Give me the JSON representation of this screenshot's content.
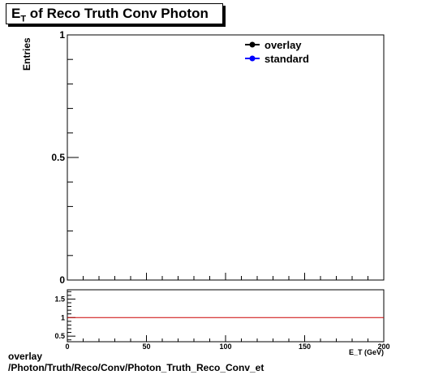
{
  "chart_data": [
    {
      "type": "line",
      "title": "E",
      "title_sub": "T",
      "title_rest": " of Reco Truth Conv Photon",
      "ylabel": "Entries",
      "xlim": [
        0,
        200
      ],
      "ylim": [
        0,
        1
      ],
      "y_ticks": [
        {
          "value": 0,
          "label": "0"
        },
        {
          "value": 0.5,
          "label": "0.5"
        },
        {
          "value": 1,
          "label": "1"
        }
      ],
      "grid": false,
      "legend_position": "top-right",
      "series": [
        {
          "name": "overlay",
          "color": "#000000",
          "values": []
        },
        {
          "name": "standard",
          "color": "#0000ff",
          "values": []
        }
      ]
    },
    {
      "type": "line",
      "xlabel": "E_T (GeV)",
      "xlim": [
        0,
        200
      ],
      "ylim": [
        0.35,
        1.75
      ],
      "x_ticks": [
        {
          "value": 0,
          "label": "0"
        },
        {
          "value": 50,
          "label": "50"
        },
        {
          "value": 100,
          "label": "100"
        },
        {
          "value": 150,
          "label": "150"
        },
        {
          "value": 200,
          "label": "200"
        }
      ],
      "y_ticks": [
        {
          "value": 0.5,
          "label": "0.5"
        },
        {
          "value": 1,
          "label": "1"
        },
        {
          "value": 1.5,
          "label": "1.5"
        }
      ],
      "reference_line": {
        "y": 1,
        "color": "#cc0000"
      }
    }
  ],
  "footer": {
    "line1": "overlay",
    "line2": "/Photon/Truth/Reco/Conv/Photon_Truth_Reco_Conv_et"
  }
}
